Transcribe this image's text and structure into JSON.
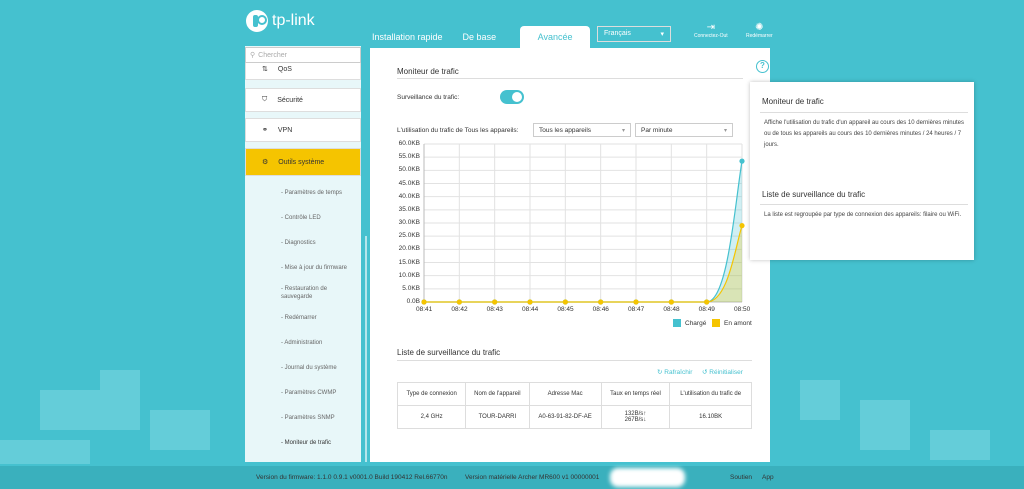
{
  "brand": {
    "logo_text": "tp-link"
  },
  "topnav": {
    "tabs": [
      {
        "label": "Installation rapide"
      },
      {
        "label": "De base"
      },
      {
        "label": "Avancée",
        "active": true
      }
    ],
    "language": "Français",
    "logout_label": "Connectez-Out",
    "reboot_label": "Redémarrer"
  },
  "sidebar": {
    "search_placeholder": "Chercher",
    "items": [
      {
        "label": "QoS"
      },
      {
        "label": "Sécurité"
      },
      {
        "label": "VPN"
      },
      {
        "label": "Outils système",
        "active": true
      }
    ],
    "subitems": [
      "- Paramètres de temps",
      "- Contrôle LED",
      "- Diagnostics",
      "- Mise à jour du firmware",
      "- Restauration de sauvegarde",
      "- Redémarrer",
      "- Administration",
      "- Journal du système",
      "- Paramètres CWMP",
      "- Paramètres SNMP",
      "- Moniteur de trafic"
    ]
  },
  "monitor": {
    "title": "Moniteur de trafic",
    "toggle_label": "Surveillance du trafic:",
    "toggle_on": true,
    "usage_label": "L'utilisation du trafic de Tous les appareils:",
    "device_select": "Tous les appareils",
    "period_select": "Par minute"
  },
  "chart_data": {
    "type": "area",
    "x": [
      "08:41",
      "08:42",
      "08:43",
      "08:44",
      "08:45",
      "08:46",
      "08:47",
      "08:48",
      "08:49",
      "08:50"
    ],
    "y_ticks": [
      "0.0B",
      "5.0KB",
      "10.0KB",
      "15.0KB",
      "20.0KB",
      "25.0KB",
      "30.0KB",
      "35.0KB",
      "40.0KB",
      "45.0KB",
      "50.0KB",
      "55.0KB",
      "60.0KB"
    ],
    "ylim": [
      0,
      60
    ],
    "y_unit": "KB",
    "grid": true,
    "legend_position": "bottom-right",
    "series": [
      {
        "name": "Chargé",
        "color": "#45c1cf",
        "values": [
          0,
          0,
          0,
          0,
          0,
          0,
          0,
          0,
          0,
          53.5
        ]
      },
      {
        "name": "En amont",
        "color": "#f5c400",
        "values": [
          0,
          0,
          0,
          0,
          0,
          0,
          0,
          0,
          0,
          29
        ]
      }
    ]
  },
  "list": {
    "title": "Liste de surveillance du trafic",
    "refresh_label": "Rafraîchir",
    "reset_label": "Réinitialiser",
    "columns": [
      "Type de connexion",
      "Nom de l'appareil",
      "Adresse Mac",
      "Taux en temps réel",
      "L'utilisation du trafic de"
    ],
    "rows": [
      {
        "type": "2,4 GHz",
        "name": "TOUR-DARRI",
        "mac": "A0-63-91-82-DF-AE",
        "rate_up": "132B/s↑",
        "rate_down": "267B/s↓",
        "usage": "16.10BK"
      }
    ]
  },
  "help": {
    "title1": "Moniteur de trafic",
    "text1": "Affiche l'utilisation du trafic d'un appareil au cours des 10 dernières minutes ou de tous les appareils au cours des 10 dernières minutes / 24 heures / 7 jours.",
    "title2": "Liste de surveillance du trafic",
    "text2": "La liste est regroupée par type de connexion des appareils: filaire ou WiFi."
  },
  "footer": {
    "firmware": "Version du firmware: 1.1.0 0.9.1 v0001.0 Build 190412 Rel.66770n",
    "hardware": "Version matérielle Archer MR600 v1 00000001",
    "support": "Soutien",
    "app": "App"
  }
}
